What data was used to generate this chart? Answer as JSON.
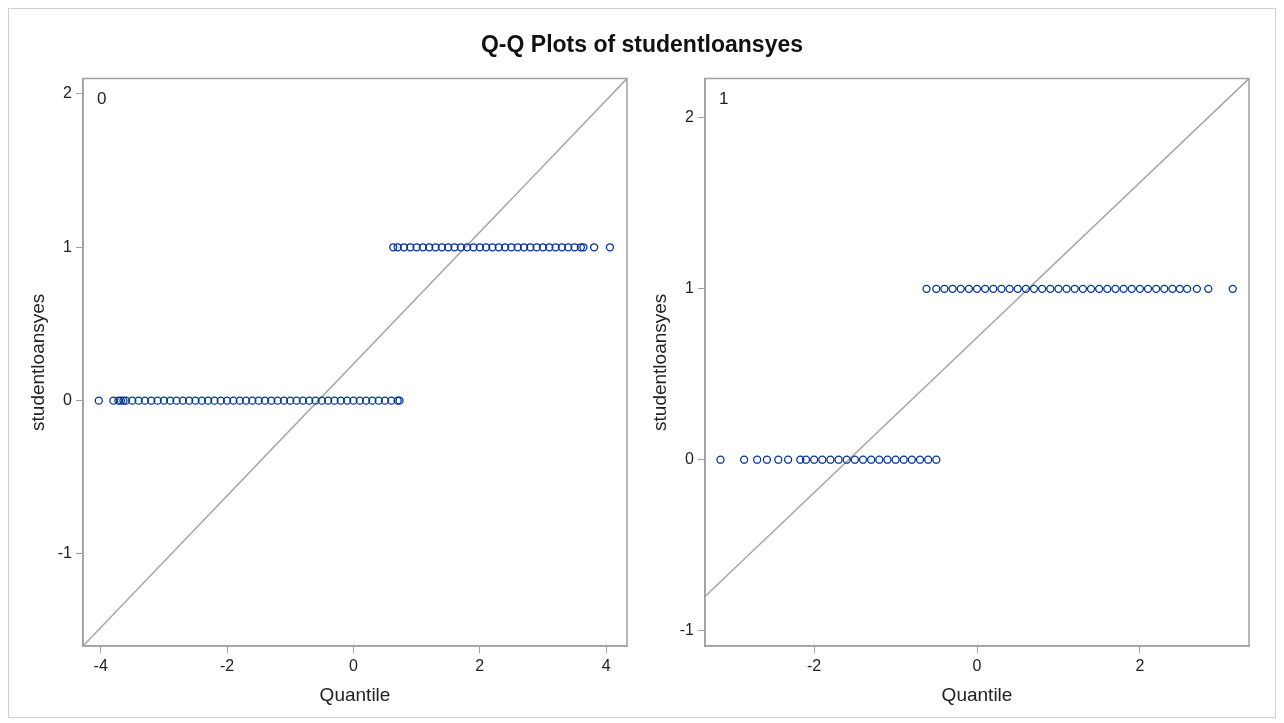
{
  "chart_data": [
    {
      "type": "scatter",
      "title": "Q-Q Plots of studentloansyes",
      "xlabel": "Quantile",
      "ylabel": "studentloansyes",
      "annotations": [
        "0"
      ],
      "xlim": [
        -4.28,
        4.33
      ],
      "ylim": [
        -1.6,
        2.1
      ],
      "xticks": [
        -4,
        -2,
        0,
        2,
        4
      ],
      "yticks": [
        -1,
        0,
        1,
        2
      ],
      "grid": false,
      "legend": false,
      "series": [
        {
          "type": "scatter",
          "marker": "circle",
          "color": "#003399",
          "x": [
            -4.03,
            -3.8,
            -3.72,
            -3.68,
            -3.64,
            -3.6,
            -3.5,
            -3.4,
            -3.3,
            -3.2,
            -3.1,
            -3.0,
            -2.9,
            -2.8,
            -2.7,
            -2.6,
            -2.5,
            -2.4,
            -2.3,
            -2.2,
            -2.1,
            -2.0,
            -1.9,
            -1.8,
            -1.7,
            -1.6,
            -1.5,
            -1.4,
            -1.3,
            -1.2,
            -1.1,
            -1.0,
            -0.9,
            -0.8,
            -0.7,
            -0.6,
            -0.5,
            -0.4,
            -0.3,
            -0.2,
            -0.1,
            0,
            0.1,
            0.2,
            0.3,
            0.4,
            0.5,
            0.6,
            0.7,
            0.73
          ],
          "values": [
            0,
            0,
            0,
            0,
            0,
            0,
            0,
            0,
            0,
            0,
            0,
            0,
            0,
            0,
            0,
            0,
            0,
            0,
            0,
            0,
            0,
            0,
            0,
            0,
            0,
            0,
            0,
            0,
            0,
            0,
            0,
            0,
            0,
            0,
            0,
            0,
            0,
            0,
            0,
            0,
            0,
            0,
            0,
            0,
            0,
            0,
            0,
            0,
            0,
            0
          ]
        },
        {
          "type": "scatter",
          "marker": "circle",
          "color": "#003399",
          "x": [
            0.63,
            0.7,
            0.8,
            0.9,
            1.0,
            1.1,
            1.2,
            1.3,
            1.4,
            1.5,
            1.6,
            1.7,
            1.8,
            1.9,
            2.0,
            2.1,
            2.2,
            2.3,
            2.4,
            2.5,
            2.6,
            2.7,
            2.8,
            2.9,
            3.0,
            3.1,
            3.2,
            3.3,
            3.4,
            3.5,
            3.6,
            3.64,
            3.81,
            4.06
          ],
          "values": [
            1,
            1,
            1,
            1,
            1,
            1,
            1,
            1,
            1,
            1,
            1,
            1,
            1,
            1,
            1,
            1,
            1,
            1,
            1,
            1,
            1,
            1,
            1,
            1,
            1,
            1,
            1,
            1,
            1,
            1,
            1,
            1,
            1,
            1
          ]
        },
        {
          "type": "line",
          "marker": "none",
          "color": "#a6a6a6",
          "x": [
            -4.28,
            4.33
          ],
          "values": [
            -1.6,
            2.1
          ]
        }
      ]
    },
    {
      "type": "scatter",
      "xlabel": "Quantile",
      "ylabel": "studentloansyes",
      "annotations": [
        "1"
      ],
      "xlim": [
        -3.34,
        3.34
      ],
      "ylim": [
        -1.09,
        2.23
      ],
      "xticks": [
        -2,
        0,
        2
      ],
      "yticks": [
        -1,
        0,
        1,
        2
      ],
      "grid": false,
      "legend": false,
      "series": [
        {
          "type": "scatter",
          "marker": "circle",
          "color": "#003399",
          "x": [
            -3.15,
            -2.86,
            -2.7,
            -2.58,
            -2.44,
            -2.32,
            -2.17,
            -2.1,
            -2.0,
            -1.9,
            -1.8,
            -1.7,
            -1.6,
            -1.5,
            -1.4,
            -1.3,
            -1.2,
            -1.1,
            -1.0,
            -0.9,
            -0.8,
            -0.7,
            -0.6,
            -0.5
          ],
          "values": [
            0,
            0,
            0,
            0,
            0,
            0,
            0,
            0,
            0,
            0,
            0,
            0,
            0,
            0,
            0,
            0,
            0,
            0,
            0,
            0,
            0,
            0,
            0,
            0
          ]
        },
        {
          "type": "scatter",
          "marker": "circle",
          "color": "#003399",
          "x": [
            -0.62,
            -0.5,
            -0.4,
            -0.3,
            -0.2,
            -0.1,
            0,
            0.1,
            0.2,
            0.3,
            0.4,
            0.5,
            0.6,
            0.7,
            0.8,
            0.9,
            1.0,
            1.1,
            1.2,
            1.3,
            1.4,
            1.5,
            1.6,
            1.7,
            1.8,
            1.9,
            2.0,
            2.1,
            2.2,
            2.3,
            2.4,
            2.49,
            2.58,
            2.7,
            2.84,
            3.14
          ],
          "values": [
            1,
            1,
            1,
            1,
            1,
            1,
            1,
            1,
            1,
            1,
            1,
            1,
            1,
            1,
            1,
            1,
            1,
            1,
            1,
            1,
            1,
            1,
            1,
            1,
            1,
            1,
            1,
            1,
            1,
            1,
            1,
            1,
            1,
            1,
            1,
            1
          ]
        },
        {
          "type": "line",
          "marker": "none",
          "color": "#a6a6a6",
          "x": [
            -3.34,
            3.34
          ],
          "values": [
            -0.8,
            2.23
          ]
        }
      ]
    }
  ]
}
